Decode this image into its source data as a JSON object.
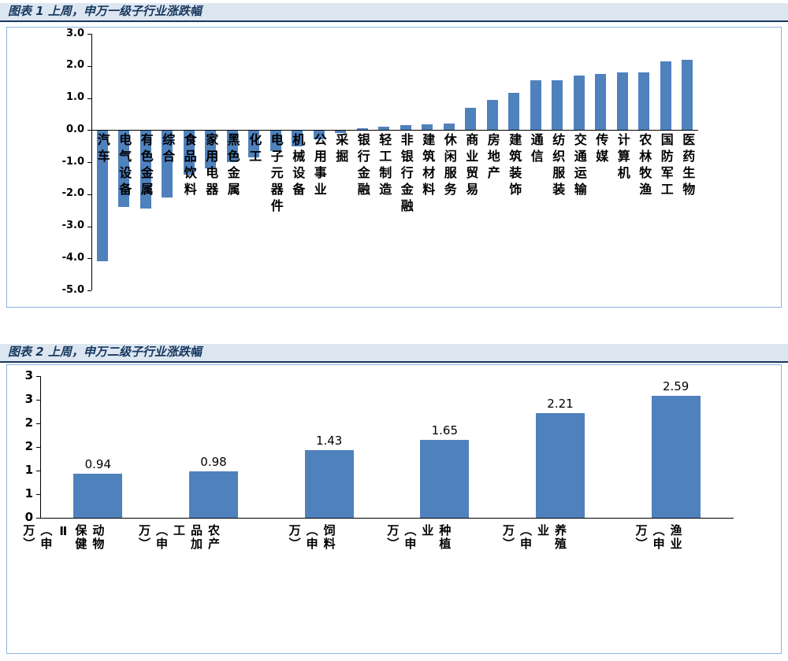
{
  "figure1_header": "图表 1 上周，申万一级子行业涨跌幅",
  "figure2_header": "图表 2 上周，申万二级子行业涨跌幅",
  "colors": {
    "bar": "#4F81BD",
    "header_background": "#DCE6F1",
    "header_text": "#17375E",
    "chart_border": "#8DB4E2",
    "axis": "#000000"
  },
  "chart_data": [
    {
      "type": "bar",
      "title": "图表 1 上周，申万一级子行业涨跌幅",
      "bar_color": "#4F81BD",
      "categories": [
        "汽车",
        "电气设备",
        "有色金属",
        "综合",
        "食品饮料",
        "家用电器",
        "黑色金属",
        "化工",
        "电子元器件",
        "机械设备",
        "公用事业",
        "采掘",
        "银行金融",
        "轻工制造",
        "非银行金融",
        "建筑材料",
        "休闲服务",
        "商业贸易",
        "房地产",
        "建筑装饰",
        "通信",
        "纺织服装",
        "交通运输",
        "传媒",
        "计算机",
        "农林牧渔",
        "国防军工",
        "医药生物"
      ],
      "values": [
        -4.1,
        -2.4,
        -2.45,
        -2.1,
        -1.4,
        -1.2,
        -1.0,
        -0.85,
        -0.65,
        -0.5,
        -0.3,
        -0.1,
        0.05,
        0.1,
        0.15,
        0.18,
        0.2,
        0.7,
        0.95,
        1.15,
        1.55,
        1.55,
        1.7,
        1.75,
        1.8,
        1.8,
        2.15,
        2.2
      ],
      "xlabel": "",
      "ylabel": "",
      "ylim": [
        -5,
        3
      ],
      "ytick_labels": [
        "3.0",
        "2.0",
        "1.0",
        "0.0",
        "-1.0",
        "-2.0",
        "-3.0",
        "-4.0",
        "-5.0"
      ],
      "grid": false,
      "legend": "none"
    },
    {
      "type": "bar",
      "title": "图表 2 上周，申万二级子行业涨跌幅",
      "bar_color": "#4F81BD",
      "categories": [
        "动物保健Ⅱ（申万）",
        "农产品加工（申万）",
        "饲料（申万）",
        "种植业（申万）",
        "养殖业（申万）",
        "渔业（申万）"
      ],
      "values": [
        0.94,
        0.98,
        1.43,
        1.65,
        2.21,
        2.59
      ],
      "data_labels": [
        "0.94",
        "0.98",
        "1.43",
        "1.65",
        "2.21",
        "2.59"
      ],
      "xlabel": "",
      "ylabel": "",
      "ylim": [
        0,
        3
      ],
      "ytick_labels": [
        "3",
        "3",
        "2",
        "2",
        "1",
        "1",
        "0"
      ],
      "grid": false,
      "legend": "none"
    }
  ]
}
